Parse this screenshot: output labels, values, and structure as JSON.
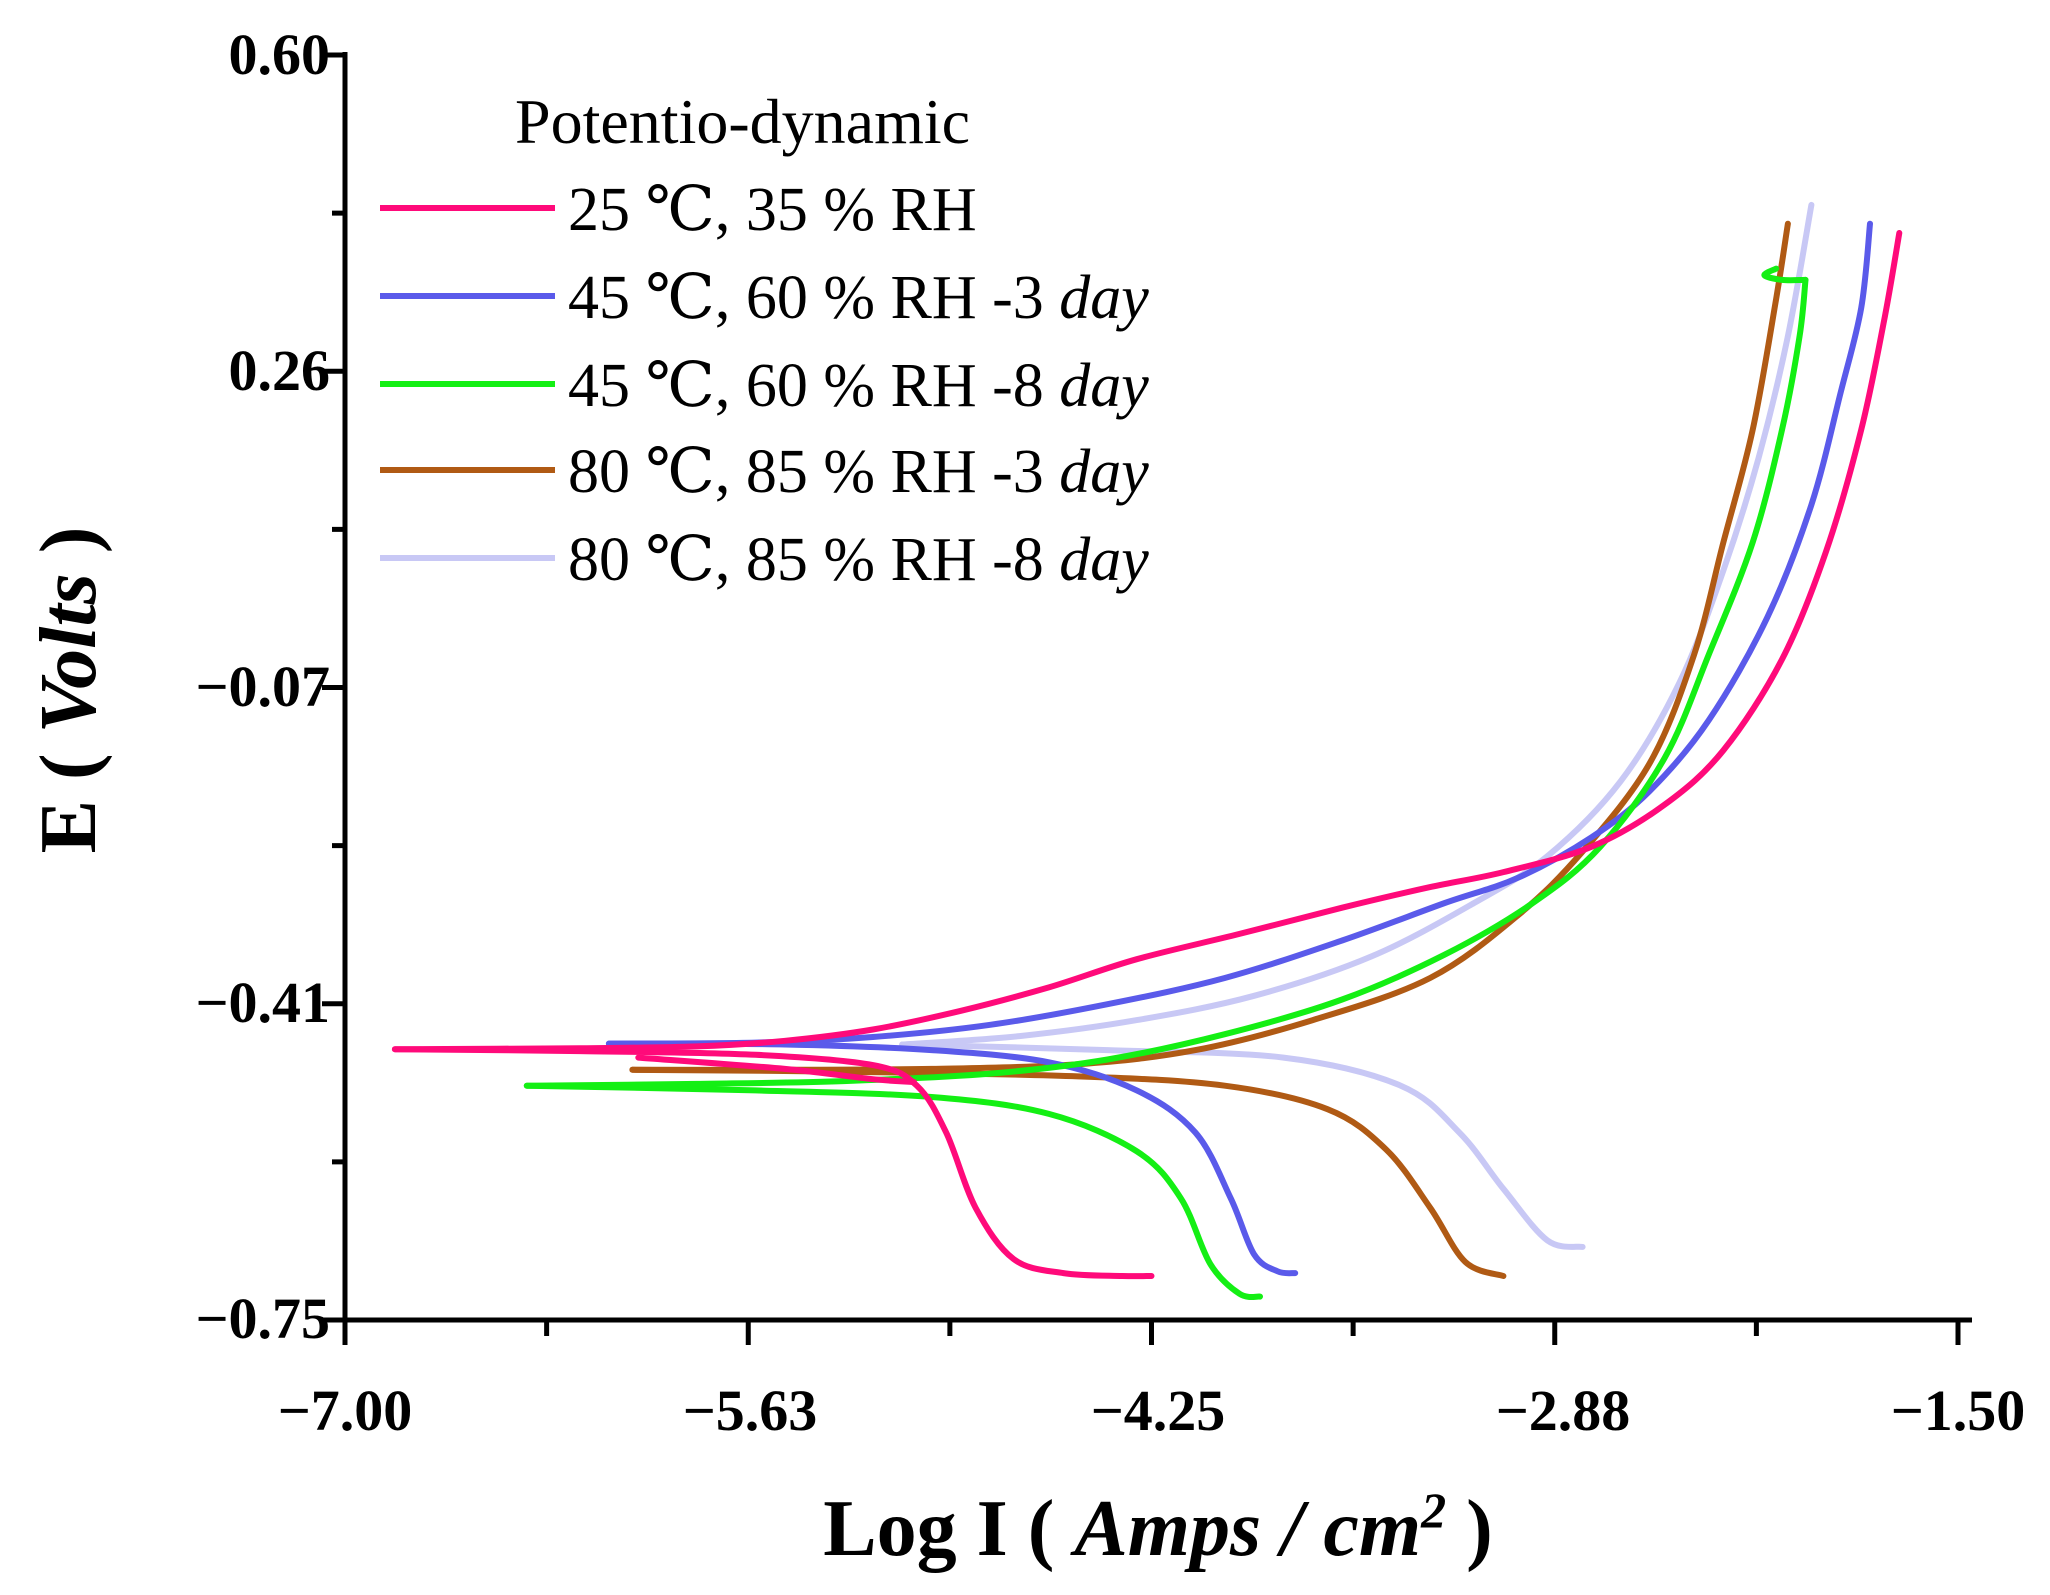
{
  "chart_data": {
    "type": "line",
    "xlabel": {
      "prefix": "Log I ( ",
      "italic": "Amps / cm",
      "sup": "2",
      "suffix": " )"
    },
    "ylabel": {
      "prefix": "E ( ",
      "italic": "Volts",
      "suffix": " )"
    },
    "xlim": [
      -7.0,
      -1.5
    ],
    "ylim": [
      -0.75,
      0.6
    ],
    "x_tick_labels": [
      "−7.00",
      "−5.63",
      "−4.25",
      "−2.88",
      "−1.50"
    ],
    "y_tick_labels": [
      "0.60",
      "0.26",
      "−0.07",
      "−0.41",
      "−0.75"
    ],
    "grid": false,
    "legend": {
      "title": "Potentio-dynamic",
      "position": "top-left",
      "entries": [
        {
          "pre": "25 ℃, 35 % RH",
          "italic": ""
        },
        {
          "pre": "45 ℃, 60 % RH -3 ",
          "italic": "day"
        },
        {
          "pre": "45 ℃, 60 % RH -8 ",
          "italic": "day"
        },
        {
          "pre": "80 ℃, 85 % RH -3 ",
          "italic": "day"
        },
        {
          "pre": "80 ℃, 85 % RH -8 ",
          "italic": "day"
        }
      ]
    },
    "series": [
      {
        "name": "25 ℃, 35 % RH",
        "color": "#ff0a7a",
        "anodic": [
          [
            -6.83,
            -0.461
          ],
          [
            -6.2,
            -0.46
          ],
          [
            -5.8,
            -0.458
          ],
          [
            -5.5,
            -0.452
          ],
          [
            -5.2,
            -0.44
          ],
          [
            -4.9,
            -0.42
          ],
          [
            -4.6,
            -0.395
          ],
          [
            -4.3,
            -0.365
          ],
          [
            -3.95,
            -0.338
          ],
          [
            -3.6,
            -0.31
          ],
          [
            -3.3,
            -0.288
          ],
          [
            -3.05,
            -0.272
          ],
          [
            -2.75,
            -0.245
          ],
          [
            -2.5,
            -0.2
          ],
          [
            -2.3,
            -0.142
          ],
          [
            -2.1,
            -0.045
          ],
          [
            -1.95,
            0.07
          ],
          [
            -1.83,
            0.2
          ],
          [
            -1.75,
            0.32
          ],
          [
            -1.7,
            0.41
          ]
        ],
        "cathodic": [
          [
            -6.83,
            -0.461
          ],
          [
            -6.2,
            -0.463
          ],
          [
            -5.6,
            -0.467
          ],
          [
            -5.2,
            -0.478
          ],
          [
            -5.05,
            -0.5
          ],
          [
            -4.95,
            -0.55
          ],
          [
            -4.85,
            -0.63
          ],
          [
            -4.72,
            -0.685
          ],
          [
            -4.55,
            -0.7
          ],
          [
            -4.35,
            -0.703
          ],
          [
            -4.25,
            -0.703
          ]
        ],
        "tail": [
          [
            -6.0,
            -0.47
          ],
          [
            -5.5,
            -0.482
          ],
          [
            -5.2,
            -0.493
          ],
          [
            -5.06,
            -0.496
          ]
        ]
      },
      {
        "name": "45 ℃, 60 % RH -3 day",
        "color": "#5a5aea",
        "anodic": [
          [
            -6.1,
            -0.455
          ],
          [
            -5.6,
            -0.454
          ],
          [
            -5.2,
            -0.448
          ],
          [
            -4.8,
            -0.435
          ],
          [
            -4.4,
            -0.413
          ],
          [
            -4.0,
            -0.385
          ],
          [
            -3.6,
            -0.345
          ],
          [
            -3.25,
            -0.305
          ],
          [
            -3.0,
            -0.278
          ],
          [
            -2.75,
            -0.235
          ],
          [
            -2.55,
            -0.185
          ],
          [
            -2.35,
            -0.11
          ],
          [
            -2.15,
            0.0
          ],
          [
            -2.0,
            0.12
          ],
          [
            -1.9,
            0.24
          ],
          [
            -1.83,
            0.33
          ],
          [
            -1.8,
            0.42
          ]
        ],
        "cathodic": [
          [
            -6.1,
            -0.455
          ],
          [
            -5.5,
            -0.456
          ],
          [
            -5.0,
            -0.462
          ],
          [
            -4.6,
            -0.475
          ],
          [
            -4.3,
            -0.505
          ],
          [
            -4.1,
            -0.55
          ],
          [
            -3.98,
            -0.62
          ],
          [
            -3.9,
            -0.68
          ],
          [
            -3.82,
            -0.698
          ],
          [
            -3.76,
            -0.7
          ]
        ]
      },
      {
        "name": "45 ℃, 60 % RH -8 day",
        "color": "#14ef14",
        "anodic": [
          [
            -6.38,
            -0.5
          ],
          [
            -5.8,
            -0.498
          ],
          [
            -5.3,
            -0.495
          ],
          [
            -4.8,
            -0.487
          ],
          [
            -4.4,
            -0.472
          ],
          [
            -4.0,
            -0.445
          ],
          [
            -3.6,
            -0.408
          ],
          [
            -3.25,
            -0.36
          ],
          [
            -2.95,
            -0.305
          ],
          [
            -2.72,
            -0.245
          ],
          [
            -2.5,
            -0.15
          ],
          [
            -2.35,
            -0.04
          ],
          [
            -2.2,
            0.08
          ],
          [
            -2.1,
            0.2
          ],
          [
            -2.04,
            0.3
          ],
          [
            -2.02,
            0.36
          ]
        ],
        "cathodic": [
          [
            -6.38,
            -0.5
          ],
          [
            -5.6,
            -0.505
          ],
          [
            -5.0,
            -0.512
          ],
          [
            -4.6,
            -0.53
          ],
          [
            -4.3,
            -0.57
          ],
          [
            -4.15,
            -0.62
          ],
          [
            -4.05,
            -0.69
          ],
          [
            -3.95,
            -0.722
          ],
          [
            -3.88,
            -0.725
          ]
        ],
        "hook": [
          [
            -2.02,
            0.36
          ],
          [
            -2.1,
            0.36
          ],
          [
            -2.16,
            0.365
          ],
          [
            -2.12,
            0.372
          ]
        ]
      },
      {
        "name": "80 ℃, 85 % RH -3 day",
        "color": "#b05a14",
        "anodic": [
          [
            -6.02,
            -0.483
          ],
          [
            -5.5,
            -0.483
          ],
          [
            -5.0,
            -0.482
          ],
          [
            -4.5,
            -0.477
          ],
          [
            -4.1,
            -0.462
          ],
          [
            -3.7,
            -0.43
          ],
          [
            -3.3,
            -0.385
          ],
          [
            -3.0,
            -0.318
          ],
          [
            -2.78,
            -0.25
          ],
          [
            -2.55,
            -0.155
          ],
          [
            -2.4,
            -0.04
          ],
          [
            -2.3,
            0.08
          ],
          [
            -2.2,
            0.2
          ],
          [
            -2.12,
            0.34
          ],
          [
            -2.08,
            0.42
          ]
        ],
        "cathodic": [
          [
            -6.02,
            -0.483
          ],
          [
            -5.3,
            -0.485
          ],
          [
            -4.5,
            -0.49
          ],
          [
            -4.0,
            -0.5
          ],
          [
            -3.65,
            -0.525
          ],
          [
            -3.45,
            -0.568
          ],
          [
            -3.3,
            -0.63
          ],
          [
            -3.18,
            -0.688
          ],
          [
            -3.05,
            -0.703
          ]
        ]
      },
      {
        "name": "80 ℃, 85 % RH -8 day",
        "color": "#c8c8f5",
        "anodic": [
          [
            -5.1,
            -0.456
          ],
          [
            -4.7,
            -0.447
          ],
          [
            -4.3,
            -0.43
          ],
          [
            -3.9,
            -0.404
          ],
          [
            -3.5,
            -0.362
          ],
          [
            -3.15,
            -0.305
          ],
          [
            -2.9,
            -0.255
          ],
          [
            -2.65,
            -0.175
          ],
          [
            -2.45,
            -0.07
          ],
          [
            -2.3,
            0.05
          ],
          [
            -2.18,
            0.17
          ],
          [
            -2.08,
            0.3
          ],
          [
            -2.0,
            0.44
          ]
        ],
        "cathodic": [
          [
            -5.1,
            -0.456
          ],
          [
            -4.4,
            -0.462
          ],
          [
            -3.8,
            -0.47
          ],
          [
            -3.4,
            -0.5
          ],
          [
            -3.2,
            -0.55
          ],
          [
            -3.05,
            -0.61
          ],
          [
            -2.9,
            -0.665
          ],
          [
            -2.78,
            -0.672
          ]
        ]
      }
    ]
  }
}
